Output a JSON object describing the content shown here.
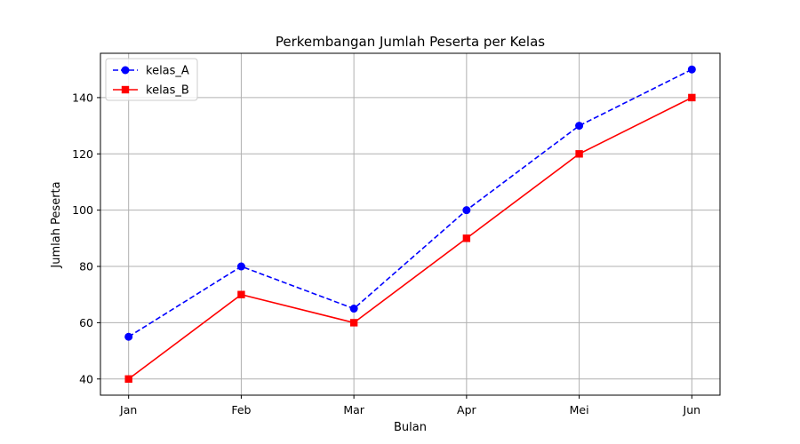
{
  "chart_data": {
    "type": "line",
    "title": "Perkembangan Jumlah Peserta per Kelas",
    "xlabel": "Bulan",
    "ylabel": "Jumlah Peserta",
    "categories": [
      "Jan",
      "Feb",
      "Mar",
      "Apr",
      "Mei",
      "Jun"
    ],
    "ylim": [
      34.25,
      155.75
    ],
    "yticks": [
      40,
      60,
      80,
      100,
      120,
      140
    ],
    "grid": true,
    "legend_position": "top-left",
    "series": [
      {
        "name": "kelas_A",
        "values": [
          55,
          80,
          65,
          100,
          130,
          150
        ],
        "color": "#0000ff",
        "line_style": "dashed",
        "marker": "circle"
      },
      {
        "name": "kelas_B",
        "values": [
          40,
          70,
          60,
          90,
          120,
          140
        ],
        "color": "#ff0000",
        "line_style": "solid",
        "marker": "square"
      }
    ]
  }
}
